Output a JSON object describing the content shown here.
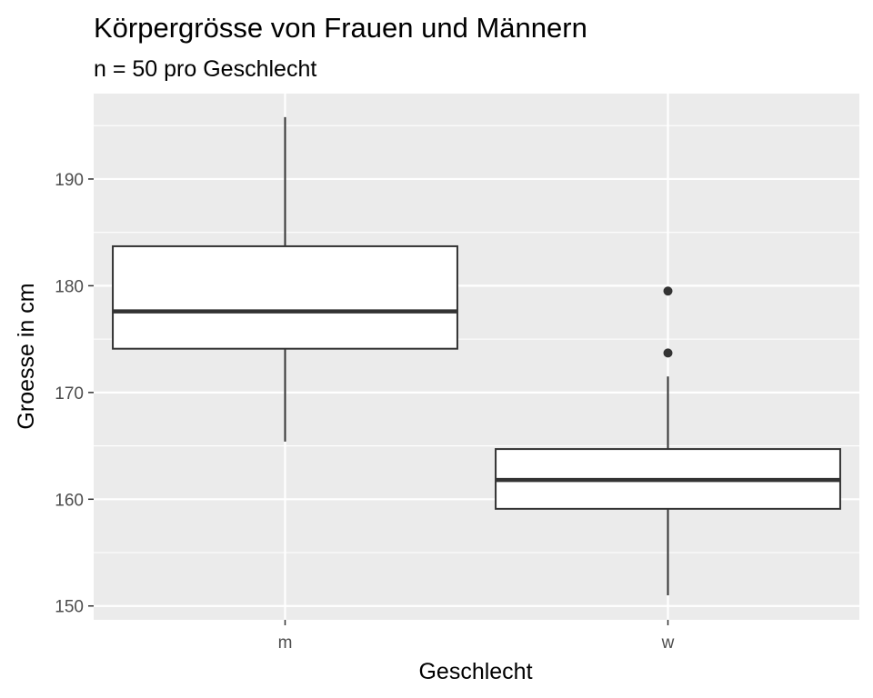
{
  "chart_data": {
    "type": "boxplot",
    "title": "Körpergrösse von Frauen und Männern",
    "subtitle": "n = 50 pro Geschlecht",
    "xlabel": "Geschlecht",
    "ylabel": "Groesse in cm",
    "categories": [
      "m",
      "w"
    ],
    "ylim": [
      148.7,
      198.0
    ],
    "yticks": [
      150,
      160,
      170,
      180,
      190
    ],
    "grid": true,
    "boxes": [
      {
        "category": "m",
        "whisker_low": 165.4,
        "q1": 174.1,
        "median": 177.6,
        "q3": 183.7,
        "whisker_high": 195.8,
        "outliers": []
      },
      {
        "category": "w",
        "whisker_low": 151.0,
        "q1": 159.1,
        "median": 161.8,
        "q3": 164.7,
        "whisker_high": 171.5,
        "outliers": [
          173.7,
          179.5
        ]
      }
    ],
    "colors": {
      "panel": "#ebebeb",
      "grid": "#ffffff",
      "box_fill": "#ffffff",
      "stroke": "#333333"
    }
  }
}
